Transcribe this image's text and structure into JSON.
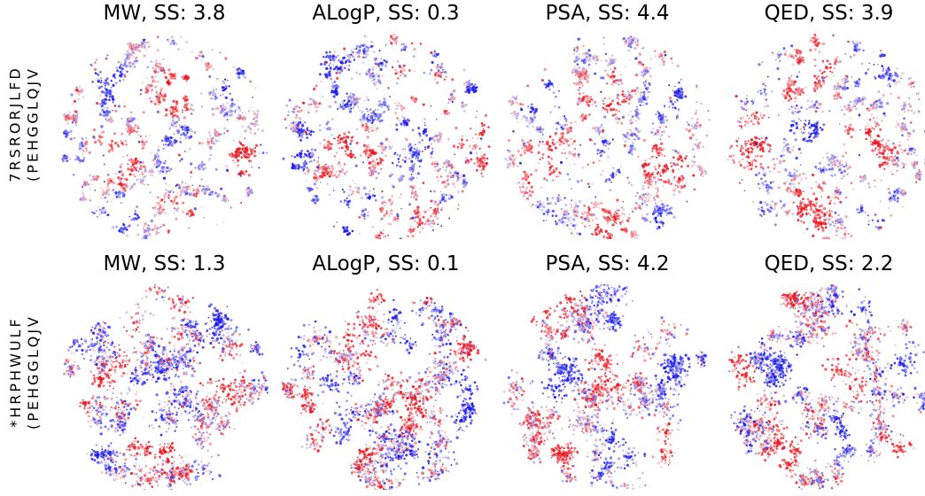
{
  "row_labels": [
    [
      "7RSRORJLFD",
      "(PEHGGLQJV"
    ],
    [
      "*HRPHWULF",
      "(PEHGGLQJV"
    ]
  ],
  "colors": {
    "high": "#e8141c",
    "low": "#1a1aeb"
  },
  "chart_data": [
    {
      "type": "scatter",
      "title": "MW, SS: 3.8",
      "row": 0,
      "col": 0,
      "seed": 11,
      "ss": 3.8,
      "embedding": "clustered"
    },
    {
      "type": "scatter",
      "title": "ALogP, SS: 0.3",
      "row": 0,
      "col": 1,
      "seed": 23,
      "ss": 0.3,
      "embedding": "clustered"
    },
    {
      "type": "scatter",
      "title": "PSA, SS: 4.4",
      "row": 0,
      "col": 2,
      "seed": 37,
      "ss": 4.4,
      "embedding": "clustered"
    },
    {
      "type": "scatter",
      "title": "QED, SS: 3.9",
      "row": 0,
      "col": 3,
      "seed": 41,
      "ss": 3.9,
      "embedding": "clustered"
    },
    {
      "type": "scatter",
      "title": "MW, SS: 1.3",
      "row": 1,
      "col": 0,
      "seed": 53,
      "ss": 1.3,
      "embedding": "dense"
    },
    {
      "type": "scatter",
      "title": "ALogP, SS: 0.1",
      "row": 1,
      "col": 1,
      "seed": 67,
      "ss": 0.1,
      "embedding": "dense"
    },
    {
      "type": "scatter",
      "title": "PSA, SS: 4.2",
      "row": 1,
      "col": 2,
      "seed": 71,
      "ss": 4.2,
      "embedding": "dense"
    },
    {
      "type": "scatter",
      "title": "QED, SS: 2.2",
      "row": 1,
      "col": 3,
      "seed": 83,
      "ss": 2.2,
      "embedding": "dense"
    }
  ]
}
